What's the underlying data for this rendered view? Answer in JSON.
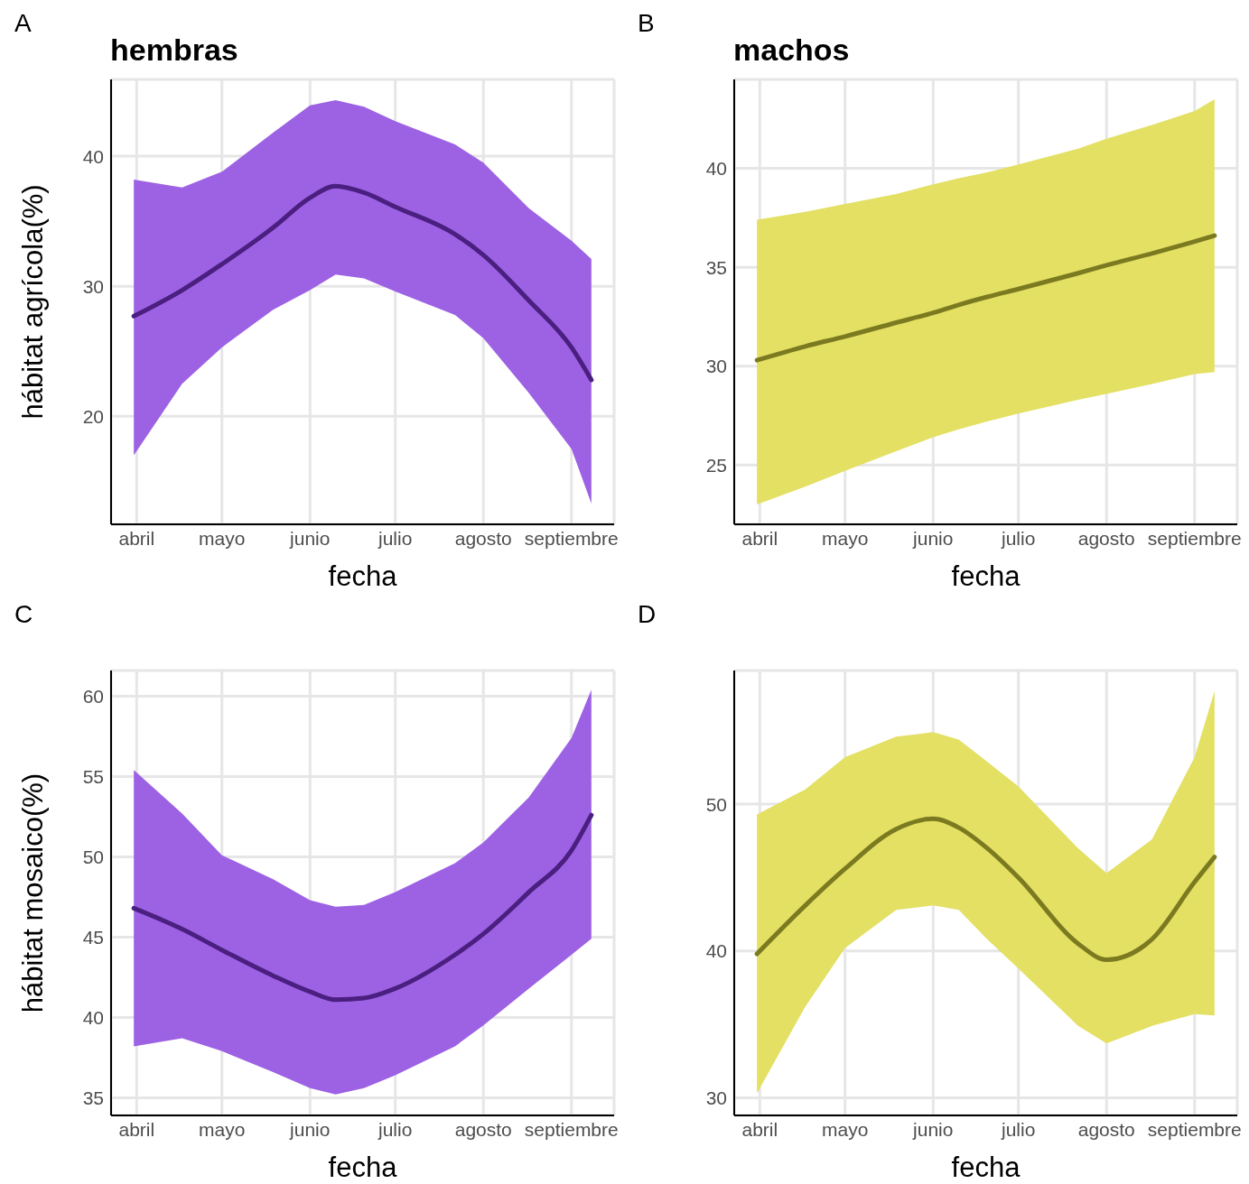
{
  "chart_data": [
    {
      "type": "line",
      "title": "hembras",
      "annotations": [
        "A"
      ],
      "xlabel": "fecha",
      "ylabel": "hábitat agrícola(%)",
      "x": [
        "--03-31",
        "--04-17",
        "--05-01",
        "--05-19",
        "--06-01",
        "--06-10",
        "--06-20",
        "--07-01",
        "--07-22",
        "--08-01",
        "--08-17",
        "--09-01",
        "--09-08"
      ],
      "xlim": [
        "--03-23",
        "--09-16"
      ],
      "xticks": [
        {
          "value": "--04-01",
          "label": "abril"
        },
        {
          "value": "--05-01",
          "label": "mayo"
        },
        {
          "value": "--06-01",
          "label": "junio"
        },
        {
          "value": "--07-01",
          "label": "julio"
        },
        {
          "value": "--08-01",
          "label": "agosto"
        },
        {
          "value": "--09-01",
          "label": "septiembre"
        }
      ],
      "ylim": [
        11.7,
        45.9
      ],
      "yticks": [
        20,
        30,
        40
      ],
      "grid": true,
      "legend": false,
      "series": [
        {
          "color": "#4a1f80",
          "values": [
            27.7,
            29.7,
            31.7,
            34.5,
            36.8,
            37.7,
            37.2,
            36.1,
            34.0,
            32.4,
            28.9,
            25.3,
            22.8
          ],
          "lower": [
            17.0,
            22.5,
            25.3,
            28.2,
            29.7,
            30.9,
            30.6,
            29.6,
            27.8,
            26.0,
            21.8,
            17.5,
            13.3
          ],
          "upper": [
            38.2,
            37.6,
            38.8,
            41.8,
            43.9,
            44.3,
            43.8,
            42.7,
            40.9,
            39.5,
            36.0,
            33.5,
            32.1
          ]
        }
      ]
    },
    {
      "type": "line",
      "title": "machos",
      "annotations": [
        "B"
      ],
      "xlabel": "fecha",
      "x": [
        "--03-31",
        "--04-17",
        "--05-01",
        "--05-19",
        "--06-01",
        "--06-10",
        "--06-20",
        "--07-01",
        "--07-22",
        "--08-01",
        "--08-17",
        "--09-01",
        "--09-08"
      ],
      "xlim": [
        "--03-23",
        "--09-16"
      ],
      "xticks": [
        {
          "value": "--04-01",
          "label": "abril"
        },
        {
          "value": "--05-01",
          "label": "mayo"
        },
        {
          "value": "--06-01",
          "label": "junio"
        },
        {
          "value": "--07-01",
          "label": "julio"
        },
        {
          "value": "--08-01",
          "label": "agosto"
        },
        {
          "value": "--09-01",
          "label": "septiembre"
        }
      ],
      "ylim": [
        22.0,
        44.5
      ],
      "yticks": [
        25,
        30,
        35,
        40
      ],
      "grid": true,
      "legend": false,
      "series": [
        {
          "color": "#7b7a20",
          "values": [
            30.3,
            31.0,
            31.5,
            32.2,
            32.7,
            33.1,
            33.5,
            33.9,
            34.7,
            35.1,
            35.7,
            36.3,
            36.6
          ],
          "lower": [
            23.0,
            23.9,
            24.7,
            25.7,
            26.4,
            26.8,
            27.2,
            27.6,
            28.3,
            28.6,
            29.1,
            29.6,
            29.7
          ],
          "upper": [
            37.4,
            37.8,
            38.2,
            38.7,
            39.2,
            39.5,
            39.8,
            40.2,
            41.0,
            41.5,
            42.2,
            42.9,
            43.5
          ]
        }
      ]
    },
    {
      "type": "line",
      "annotations": [
        "C"
      ],
      "xlabel": "fecha",
      "ylabel": "hábitat mosaico(%)",
      "x": [
        "--03-31",
        "--04-17",
        "--05-01",
        "--05-19",
        "--06-01",
        "--06-10",
        "--06-20",
        "--07-01",
        "--07-22",
        "--08-01",
        "--08-17",
        "--09-01",
        "--09-08"
      ],
      "xlim": [
        "--03-23",
        "--09-16"
      ],
      "xticks": [
        {
          "value": "--04-01",
          "label": "abril"
        },
        {
          "value": "--05-01",
          "label": "mayo"
        },
        {
          "value": "--06-01",
          "label": "junio"
        },
        {
          "value": "--07-01",
          "label": "julio"
        },
        {
          "value": "--08-01",
          "label": "agosto"
        },
        {
          "value": "--09-01",
          "label": "septiembre"
        }
      ],
      "ylim": [
        33.9,
        61.6
      ],
      "yticks": [
        35,
        40,
        45,
        50,
        55,
        60
      ],
      "grid": true,
      "legend": false,
      "series": [
        {
          "color": "#4a1f80",
          "values": [
            46.8,
            45.5,
            44.2,
            42.6,
            41.6,
            41.1,
            41.2,
            41.8,
            43.9,
            45.2,
            47.8,
            50.4,
            52.6
          ],
          "lower": [
            38.2,
            38.7,
            37.9,
            36.6,
            35.6,
            35.2,
            35.6,
            36.4,
            38.2,
            39.5,
            41.8,
            43.9,
            44.9
          ],
          "upper": [
            55.4,
            52.7,
            50.1,
            48.6,
            47.3,
            46.9,
            47.0,
            47.8,
            49.6,
            50.9,
            53.7,
            57.4,
            60.4
          ]
        }
      ]
    },
    {
      "type": "line",
      "annotations": [
        "D"
      ],
      "xlabel": "fecha",
      "x": [
        "--03-31",
        "--04-17",
        "--05-01",
        "--05-19",
        "--06-01",
        "--06-10",
        "--06-20",
        "--07-01",
        "--07-22",
        "--08-01",
        "--08-17",
        "--09-01",
        "--09-08"
      ],
      "xlim": [
        "--03-23",
        "--09-16"
      ],
      "xticks": [
        {
          "value": "--04-01",
          "label": "abril"
        },
        {
          "value": "--05-01",
          "label": "mayo"
        },
        {
          "value": "--06-01",
          "label": "junio"
        },
        {
          "value": "--07-01",
          "label": "julio"
        },
        {
          "value": "--08-01",
          "label": "agosto"
        },
        {
          "value": "--09-01",
          "label": "septiembre"
        }
      ],
      "ylim": [
        28.8,
        59.1
      ],
      "yticks": [
        30,
        40,
        50
      ],
      "grid": true,
      "legend": false,
      "series": [
        {
          "color": "#7b7a20",
          "values": [
            39.8,
            43.1,
            45.6,
            48.3,
            49.0,
            48.4,
            47.0,
            45.0,
            40.5,
            39.4,
            40.8,
            44.7,
            46.4
          ],
          "lower": [
            30.3,
            36.2,
            40.2,
            42.8,
            43.1,
            42.8,
            40.8,
            38.8,
            34.9,
            33.7,
            34.9,
            35.7,
            35.6
          ],
          "upper": [
            49.3,
            51.0,
            53.2,
            54.6,
            54.9,
            54.4,
            52.9,
            51.2,
            47.0,
            45.3,
            47.6,
            53.2,
            57.7
          ]
        }
      ]
    }
  ]
}
